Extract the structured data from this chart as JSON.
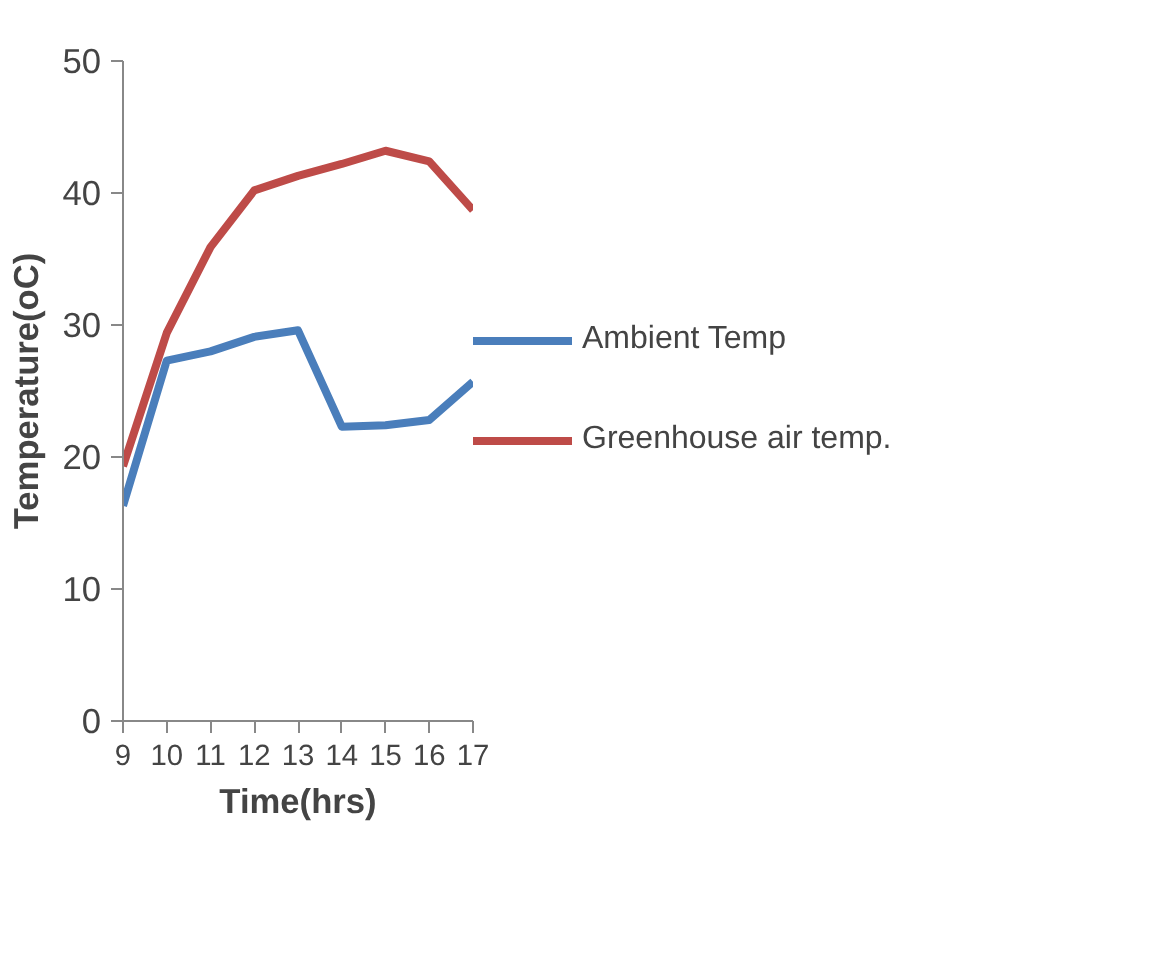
{
  "chart_data": {
    "type": "line",
    "xlabel": "Time(hrs)",
    "ylabel": "Temperature(oC)",
    "x": [
      9,
      10,
      11,
      12,
      13,
      14,
      15,
      16,
      17
    ],
    "xlim": [
      9,
      17
    ],
    "xticks": [
      9,
      10,
      11,
      12,
      13,
      14,
      15,
      16,
      17
    ],
    "ylim": [
      0,
      50
    ],
    "yticks": [
      0,
      10,
      20,
      30,
      40,
      50
    ],
    "grid": false,
    "legend": "right",
    "marker": "none",
    "line_style": "solid",
    "series": [
      {
        "name": "Ambient Temp",
        "color": "#4a7ebb",
        "values": [
          16.3,
          27.3,
          28,
          29.1,
          29.6,
          22.3,
          22.4,
          22.8,
          25.7
        ]
      },
      {
        "name": "Greenhouse air temp.",
        "color": "#be4b48",
        "values": [
          19.3,
          29.4,
          35.9,
          40.2,
          41.3,
          42.2,
          43.2,
          42.4,
          38.7
        ]
      }
    ]
  }
}
